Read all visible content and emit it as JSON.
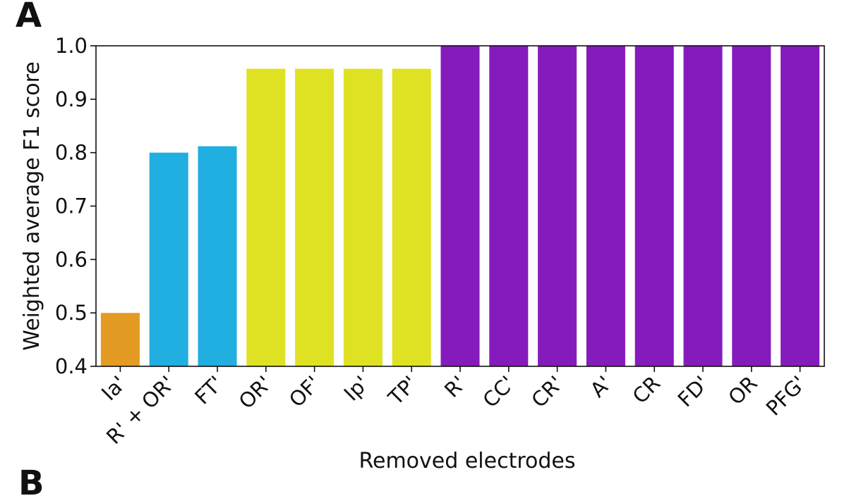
{
  "panel_label": "A",
  "next_panel_label": "B",
  "chart_data": {
    "type": "bar",
    "title": "",
    "xlabel": "Removed electrodes",
    "ylabel": "Weighted average F1 score",
    "ylim": [
      0.4,
      1.0
    ],
    "yticks": [
      "0.4",
      "0.5",
      "0.6",
      "0.7",
      "0.8",
      "0.9",
      "1.0"
    ],
    "categories": [
      "Ia'",
      "R' + OR'",
      "FT'",
      "OR'",
      "OF'",
      "Ip'",
      "TP'",
      "R'",
      "CC'",
      "CR'",
      "A'",
      "CR",
      "FD'",
      "OR",
      "PFG'"
    ],
    "values": [
      0.5,
      0.8,
      0.812,
      0.957,
      0.957,
      0.957,
      0.957,
      1.0,
      1.0,
      1.0,
      1.0,
      1.0,
      1.0,
      1.0,
      1.0
    ],
    "colors": [
      "#e49b23",
      "#21aee0",
      "#21aee0",
      "#dfe123",
      "#dfe123",
      "#dfe123",
      "#dfe123",
      "#861bbd",
      "#861bbd",
      "#861bbd",
      "#861bbd",
      "#861bbd",
      "#861bbd",
      "#861bbd",
      "#861bbd"
    ],
    "grid": false,
    "legend": "none"
  }
}
